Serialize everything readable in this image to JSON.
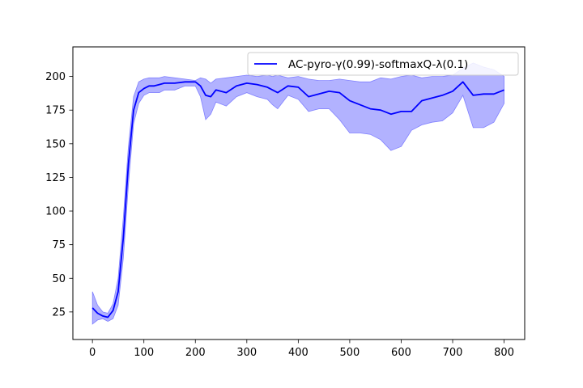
{
  "chart_data": {
    "type": "line",
    "title": "",
    "xlabel": "",
    "ylabel": "",
    "xlim": [
      -38,
      840
    ],
    "ylim": [
      4.5,
      222
    ],
    "xticks": [
      0,
      100,
      200,
      300,
      400,
      500,
      600,
      700,
      800
    ],
    "yticks": [
      25,
      50,
      75,
      100,
      125,
      150,
      175,
      200
    ],
    "grid": false,
    "legend_position": "top-right",
    "series": [
      {
        "name": "AC-pyro-γ(0.99)-softmaxQ-λ(0.1)",
        "color": "#0000ff",
        "band_color": "#aaaaff",
        "x": [
          0,
          10,
          20,
          30,
          40,
          50,
          60,
          70,
          80,
          90,
          100,
          110,
          120,
          130,
          140,
          160,
          180,
          200,
          210,
          220,
          230,
          240,
          260,
          280,
          300,
          320,
          340,
          350,
          360,
          380,
          400,
          420,
          440,
          460,
          480,
          500,
          520,
          540,
          560,
          580,
          600,
          620,
          640,
          660,
          680,
          700,
          720,
          740,
          760,
          780,
          800
        ],
        "mean": [
          28,
          24,
          22,
          21,
          26,
          40,
          80,
          135,
          175,
          188,
          191,
          193,
          193,
          194,
          195,
          195,
          196,
          196,
          193,
          186,
          185,
          190,
          188,
          193,
          195,
          194,
          192,
          190,
          188,
          193,
          192,
          185,
          187,
          189,
          188,
          182,
          179,
          176,
          175,
          172,
          174,
          174,
          182,
          184,
          186,
          189,
          196,
          186,
          187,
          187,
          190
        ],
        "upper": [
          40,
          30,
          25,
          24,
          31,
          50,
          95,
          148,
          185,
          196,
          198,
          199,
          199,
          199,
          200,
          199,
          198,
          197,
          199,
          198,
          195,
          198,
          199,
          200,
          201,
          200,
          201,
          200,
          201,
          199,
          200,
          198,
          197,
          197,
          198,
          197,
          196,
          196,
          199,
          198,
          200,
          201,
          199,
          200,
          200,
          201,
          206,
          210,
          207,
          205,
          200
        ],
        "lower": [
          16,
          19,
          20,
          18,
          20,
          30,
          65,
          120,
          165,
          180,
          186,
          188,
          188,
          188,
          190,
          190,
          193,
          193,
          185,
          168,
          172,
          181,
          178,
          185,
          188,
          185,
          183,
          179,
          176,
          186,
          183,
          174,
          176,
          176,
          168,
          158,
          158,
          157,
          153,
          145,
          148,
          160,
          164,
          166,
          167,
          173,
          186,
          162,
          162,
          166,
          180
        ]
      }
    ]
  }
}
